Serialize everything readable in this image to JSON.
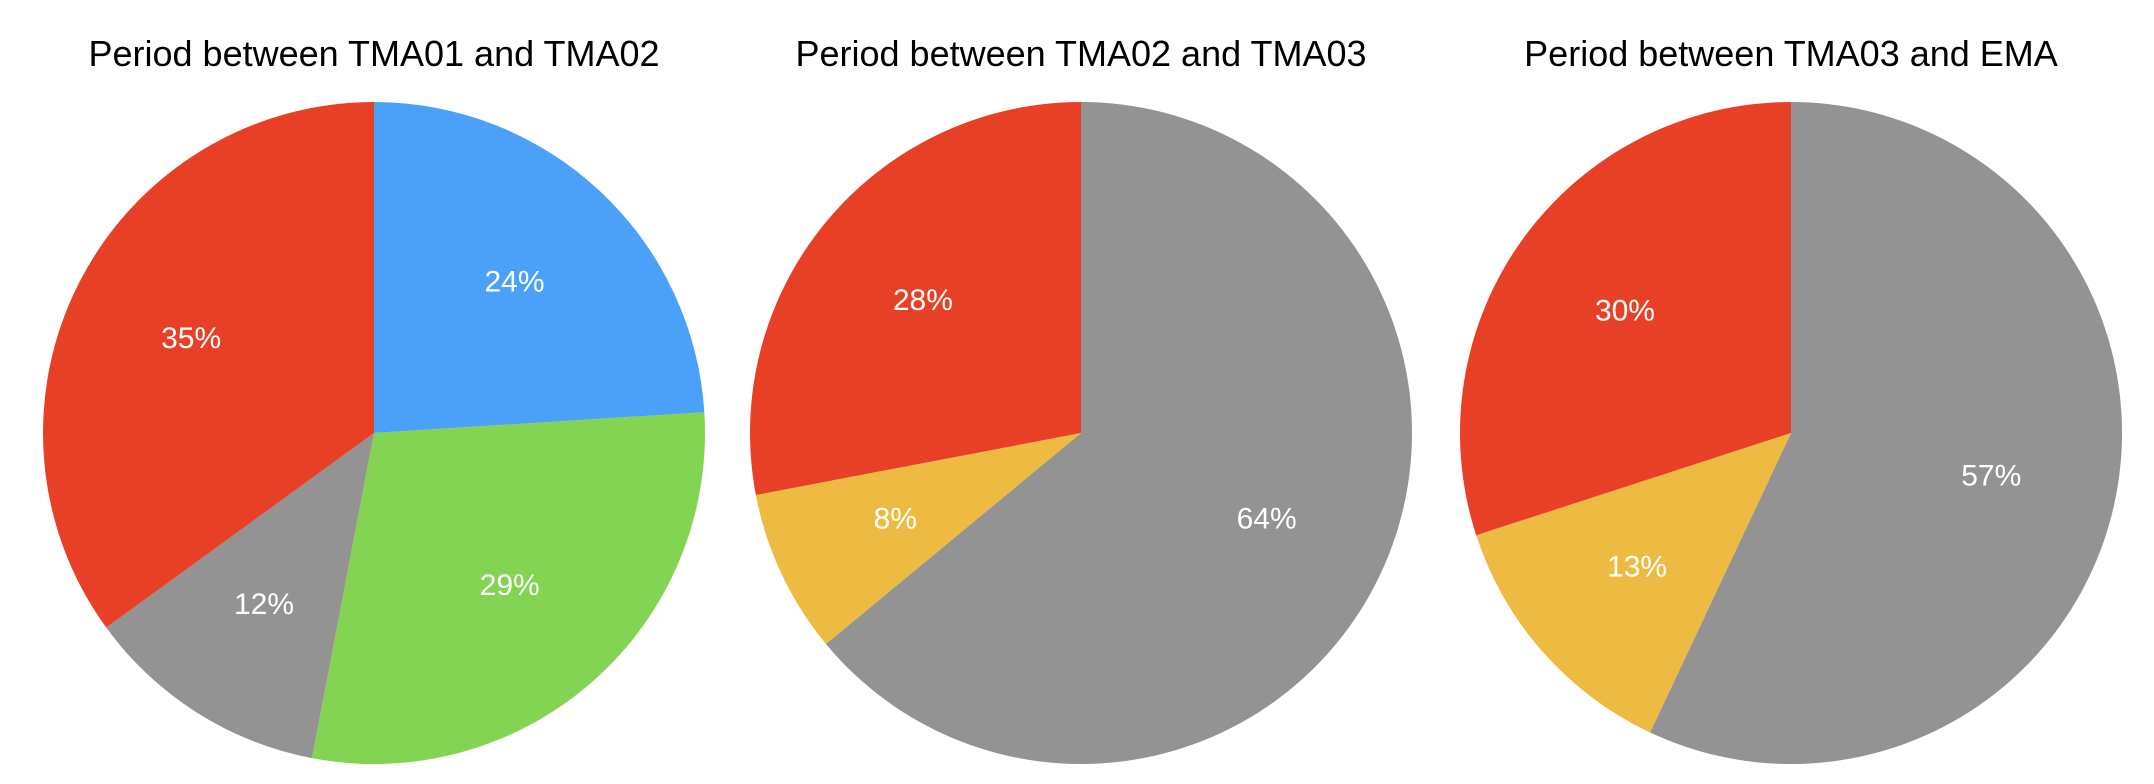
{
  "chart_data": [
    {
      "type": "pie",
      "title": "Period between TMA01 and TMA02",
      "slices": [
        {
          "label": "24%",
          "value": 24,
          "color": "#4BA1F8"
        },
        {
          "label": "29%",
          "value": 29,
          "color": "#82D452"
        },
        {
          "label": "12%",
          "value": 12,
          "color": "#939393"
        },
        {
          "label": "35%",
          "value": 35,
          "color": "#E84026"
        }
      ]
    },
    {
      "type": "pie",
      "title": "Period between TMA02 and TMA03",
      "slices": [
        {
          "label": "64%",
          "value": 64,
          "color": "#939393"
        },
        {
          "label": "8%",
          "value": 8,
          "color": "#EDBB41"
        },
        {
          "label": "28%",
          "value": 28,
          "color": "#E84026"
        }
      ]
    },
    {
      "type": "pie",
      "title": "Period between TMA03 and EMA",
      "slices": [
        {
          "label": "57%",
          "value": 57,
          "color": "#939393"
        },
        {
          "label": "13%",
          "value": 13,
          "color": "#EDBB41"
        },
        {
          "label": "30%",
          "value": 30,
          "color": "#E84026"
        }
      ]
    }
  ]
}
